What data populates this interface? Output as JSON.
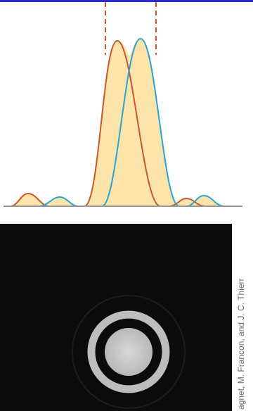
{
  "credit": "agnet, M. Francon, and J. C. Thierr"
}
